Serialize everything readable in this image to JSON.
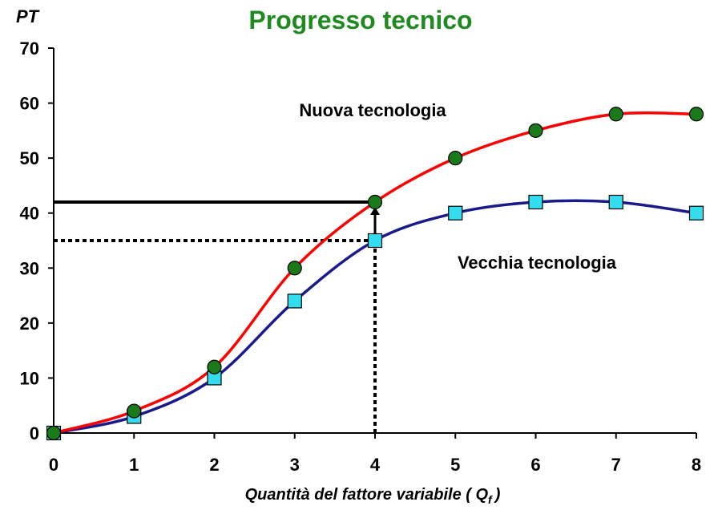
{
  "chart_data": {
    "type": "line",
    "title": "Progresso tecnico",
    "ylabel": "PT",
    "xlabel": "Quantità del fattore variabile ( Q",
    "xlabel_sub": "f",
    "xlabel_end": ")",
    "x": [
      0,
      1,
      2,
      3,
      4,
      5,
      6,
      7,
      8
    ],
    "xlim": [
      0,
      8
    ],
    "ylim": [
      0,
      70
    ],
    "yticks": [
      0,
      10,
      20,
      30,
      40,
      50,
      60,
      70
    ],
    "grid": false,
    "series": [
      {
        "name": "Nuova tecnologia",
        "values": [
          0,
          4,
          12,
          30,
          42,
          50,
          55,
          58,
          58
        ],
        "line_color": "#ff0000",
        "marker": "circle",
        "marker_color": "#1a7a1a"
      },
      {
        "name": "Vecchia tecnologia",
        "values": [
          0,
          3,
          10,
          24,
          35,
          40,
          42,
          42,
          40
        ],
        "line_color": "#1a1a8c",
        "marker": "square",
        "marker_color": "#33ddee"
      }
    ],
    "guides": {
      "new_level": 42,
      "old_level": 35,
      "at_x": 4
    },
    "colors": {
      "title": "#1f8a1f",
      "axis": "#000000"
    }
  }
}
